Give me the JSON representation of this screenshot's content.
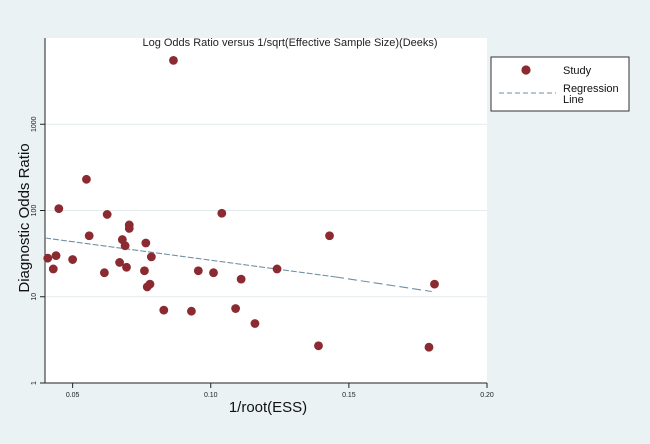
{
  "chart_data": {
    "type": "scatter",
    "title": "Log Odds Ratio versus 1/sqrt(Effective Sample Size)(Deeks)",
    "xlabel": "1/root(ESS)",
    "ylabel": "Diagnostic Odds Ratio",
    "x_scale": "linear",
    "y_scale": "log",
    "xlim": [
      0.04,
      0.2
    ],
    "ylim": [
      1,
      10000
    ],
    "x_ticks": [
      0.05,
      0.1,
      0.15,
      0.2
    ],
    "x_tick_labels": [
      "0.05",
      "0.10",
      "0.15",
      "0.20"
    ],
    "y_ticks": [
      1,
      10,
      100,
      1000
    ],
    "y_tick_labels": [
      "1",
      "10",
      "100",
      "1000"
    ],
    "grid": "horizontal",
    "legend": {
      "position": "right",
      "entries": [
        {
          "label": "Study",
          "kind": "marker"
        },
        {
          "label": "Regression Line",
          "kind": "dashed-line"
        }
      ]
    },
    "series": [
      {
        "name": "Study",
        "color": "#8b2a30",
        "points": [
          {
            "x": 0.041,
            "y": 28
          },
          {
            "x": 0.043,
            "y": 21
          },
          {
            "x": 0.044,
            "y": 30
          },
          {
            "x": 0.045,
            "y": 105
          },
          {
            "x": 0.05,
            "y": 27
          },
          {
            "x": 0.055,
            "y": 230
          },
          {
            "x": 0.056,
            "y": 51
          },
          {
            "x": 0.0615,
            "y": 19
          },
          {
            "x": 0.0625,
            "y": 90
          },
          {
            "x": 0.067,
            "y": 25
          },
          {
            "x": 0.068,
            "y": 46
          },
          {
            "x": 0.069,
            "y": 39
          },
          {
            "x": 0.0695,
            "y": 22
          },
          {
            "x": 0.0705,
            "y": 68
          },
          {
            "x": 0.0705,
            "y": 62
          },
          {
            "x": 0.076,
            "y": 20
          },
          {
            "x": 0.0765,
            "y": 42
          },
          {
            "x": 0.077,
            "y": 13
          },
          {
            "x": 0.078,
            "y": 14
          },
          {
            "x": 0.0785,
            "y": 29
          },
          {
            "x": 0.083,
            "y": 7
          },
          {
            "x": 0.0865,
            "y": 5500
          },
          {
            "x": 0.093,
            "y": 6.8
          },
          {
            "x": 0.0955,
            "y": 20
          },
          {
            "x": 0.101,
            "y": 19
          },
          {
            "x": 0.104,
            "y": 93
          },
          {
            "x": 0.109,
            "y": 7.3
          },
          {
            "x": 0.111,
            "y": 16
          },
          {
            "x": 0.116,
            "y": 4.9
          },
          {
            "x": 0.124,
            "y": 21
          },
          {
            "x": 0.139,
            "y": 2.7
          },
          {
            "x": 0.143,
            "y": 51
          },
          {
            "x": 0.179,
            "y": 2.6
          },
          {
            "x": 0.181,
            "y": 14
          }
        ]
      },
      {
        "name": "Regression Line",
        "kind": "line",
        "style": "dashed",
        "color": "#6f8fa3",
        "segments": [
          {
            "from": {
              "x": 0.04,
              "y": 48
            },
            "to": {
              "x": 0.145,
              "y": 17
            },
            "dash": "dense"
          },
          {
            "from": {
              "x": 0.145,
              "y": 17
            },
            "to": {
              "x": 0.18,
              "y": 11.5
            },
            "dash": "long"
          }
        ]
      }
    ]
  }
}
